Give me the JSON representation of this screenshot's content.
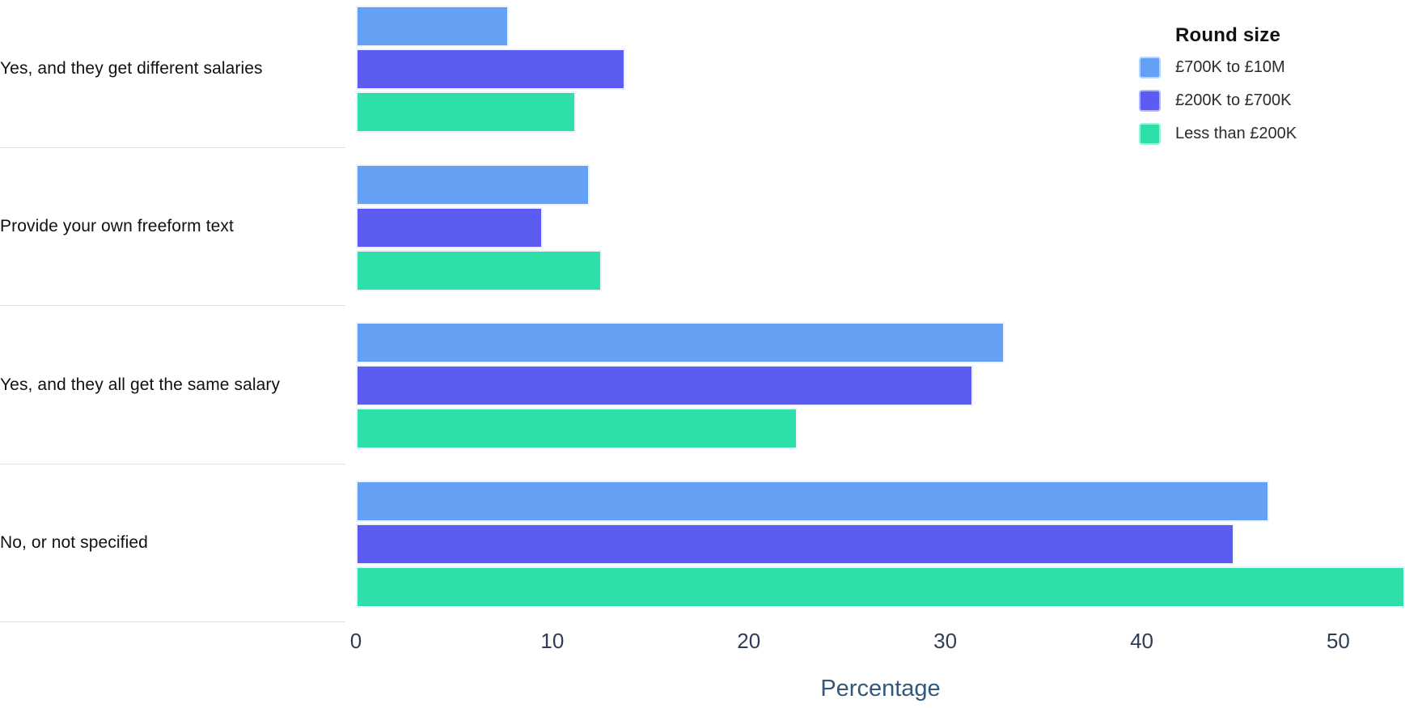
{
  "chart_data": {
    "type": "bar",
    "orientation": "horizontal",
    "title": "",
    "xlabel": "Percentage",
    "xlim": [
      0,
      53.4
    ],
    "xticks": [
      0,
      10,
      20,
      30,
      40,
      50
    ],
    "grid": false,
    "legend_title": "Round size",
    "legend_position": "top-right",
    "categories": [
      "Yes, and they get different salaries",
      "Provide your own freeform text",
      "Yes, and they all get the same salary",
      "No, or not specified"
    ],
    "series": [
      {
        "name": "£700K to £10M",
        "color": "#64a0f4",
        "values": [
          7.8,
          11.9,
          33.0,
          46.5
        ]
      },
      {
        "name": "£200K to £700K",
        "color": "#5c5cf2",
        "values": [
          13.7,
          9.5,
          31.4,
          44.7
        ]
      },
      {
        "name": "Less than £200K",
        "color": "#2fdfa9",
        "values": [
          11.2,
          12.5,
          22.5,
          53.4
        ]
      }
    ],
    "note": "The 'Less than £200K' bar for 'No, or not specified' runs to the right edge of the plot (clipped at ~53.4)."
  },
  "colors": {
    "background": "#ffffff",
    "bar_border": "#edf2fc",
    "row_separator": "#e0e0e0",
    "category_label": "#111111",
    "tick_label": "#2e3d55",
    "axis_label": "#33587a",
    "legend_text": "#2b2b2b"
  }
}
